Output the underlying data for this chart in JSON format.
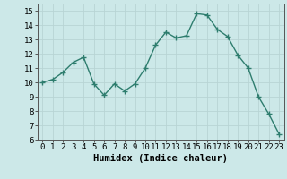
{
  "x": [
    0,
    1,
    2,
    3,
    4,
    5,
    6,
    7,
    8,
    9,
    10,
    11,
    12,
    13,
    14,
    15,
    16,
    17,
    18,
    19,
    20,
    21,
    22,
    23
  ],
  "y": [
    10.0,
    10.2,
    10.7,
    11.4,
    11.75,
    9.9,
    9.1,
    9.9,
    9.4,
    9.9,
    11.0,
    12.6,
    13.5,
    13.1,
    13.25,
    14.8,
    14.7,
    13.7,
    13.2,
    11.9,
    11.0,
    9.0,
    7.8,
    6.4
  ],
  "line_color": "#2e7d6e",
  "marker_color": "#2e7d6e",
  "background_color": "#cce8e8",
  "grid_color": "#b8d4d4",
  "xlabel": "Humidex (Indice chaleur)",
  "xlim": [
    -0.5,
    23.5
  ],
  "ylim": [
    6,
    15.5
  ],
  "yticks": [
    6,
    7,
    8,
    9,
    10,
    11,
    12,
    13,
    14,
    15
  ],
  "xticks": [
    0,
    1,
    2,
    3,
    4,
    5,
    6,
    7,
    8,
    9,
    10,
    11,
    12,
    13,
    14,
    15,
    16,
    17,
    18,
    19,
    20,
    21,
    22,
    23
  ],
  "tick_fontsize": 6.5,
  "xlabel_fontsize": 7.5,
  "line_width": 1.0,
  "marker_size": 2.5
}
